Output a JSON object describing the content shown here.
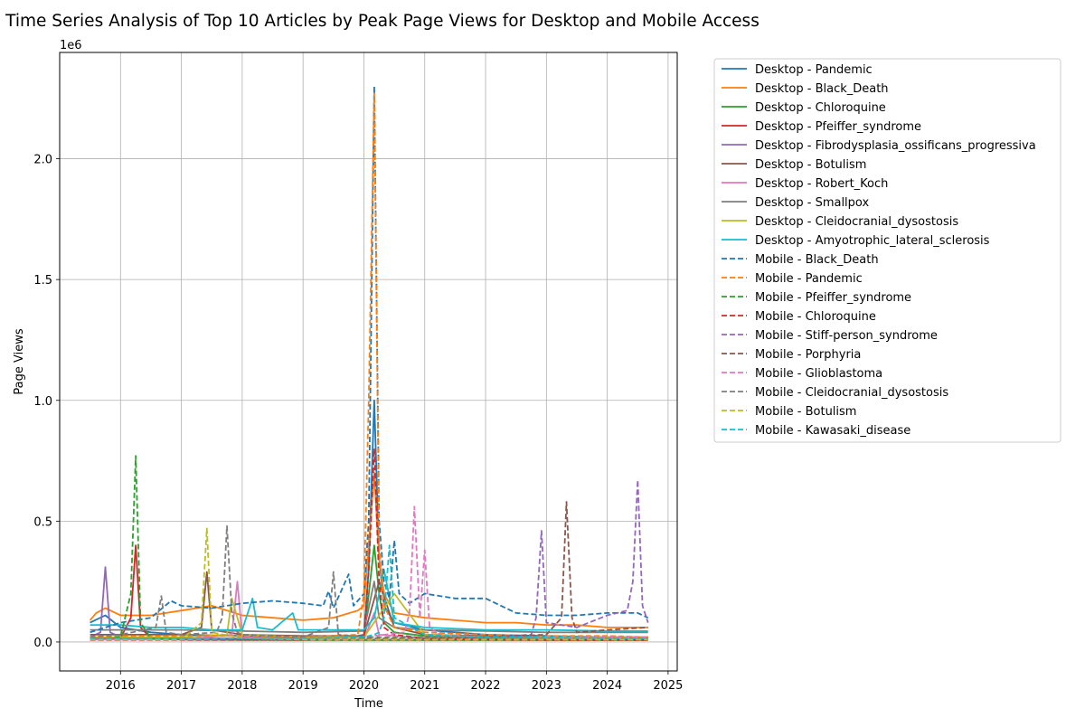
{
  "chart_data": {
    "type": "line",
    "title": "Time Series Analysis of Top 10 Articles by Peak Page Views for Desktop and Mobile Access",
    "xlabel": "Time",
    "ylabel": "Page Views",
    "y_offset_label": "1e6",
    "xlim": [
      2015.0,
      2025.15
    ],
    "ylim": [
      -120000,
      2440000
    ],
    "x_ticks": [
      2016,
      2017,
      2018,
      2019,
      2020,
      2021,
      2022,
      2023,
      2024,
      2025
    ],
    "y_ticks": [
      0,
      500000,
      1000000,
      1500000,
      2000000
    ],
    "y_tick_labels": [
      "0.0",
      "0.5",
      "1.0",
      "1.5",
      "2.0"
    ],
    "grid": true,
    "legend_position": "outside-right",
    "series": [
      {
        "name": "Desktop - Pandemic",
        "style": "solid",
        "color": "#1f77b4",
        "x": [
          2015.5,
          2015.75,
          2016.0,
          2016.5,
          2017.0,
          2018.0,
          2019.0,
          2019.8,
          2020.0,
          2020.08,
          2020.17,
          2020.25,
          2020.33,
          2020.5,
          2021.0,
          2022.0,
          2023.0,
          2024.0,
          2024.67
        ],
        "y": [
          80000,
          110000,
          60000,
          40000,
          30000,
          25000,
          20000,
          20000,
          30000,
          300000,
          1000000,
          350000,
          150000,
          80000,
          50000,
          30000,
          25000,
          20000,
          20000
        ]
      },
      {
        "name": "Desktop - Black_Death",
        "style": "solid",
        "color": "#ff7f0e",
        "x": [
          2015.5,
          2015.6,
          2015.75,
          2016.0,
          2016.5,
          2017.0,
          2017.5,
          2018.0,
          2018.5,
          2019.0,
          2019.5,
          2019.9,
          2020.0,
          2020.17,
          2020.25,
          2020.33,
          2020.5,
          2021.0,
          2021.5,
          2022.0,
          2022.5,
          2023.0,
          2023.5,
          2024.0,
          2024.67
        ],
        "y": [
          90000,
          120000,
          140000,
          110000,
          110000,
          130000,
          150000,
          110000,
          100000,
          90000,
          100000,
          130000,
          150000,
          700000,
          350000,
          200000,
          120000,
          100000,
          90000,
          80000,
          80000,
          70000,
          70000,
          60000,
          60000
        ]
      },
      {
        "name": "Desktop - Chloroquine",
        "style": "solid",
        "color": "#2ca02c",
        "x": [
          2015.5,
          2016.0,
          2017.0,
          2018.0,
          2019.0,
          2020.0,
          2020.17,
          2020.25,
          2020.33,
          2020.5,
          2021.0,
          2022.0,
          2023.0,
          2024.0,
          2024.67
        ],
        "y": [
          15000,
          15000,
          15000,
          15000,
          15000,
          20000,
          400000,
          200000,
          80000,
          40000,
          25000,
          15000,
          12000,
          10000,
          10000
        ]
      },
      {
        "name": "Desktop - Pfeiffer_syndrome",
        "style": "solid",
        "color": "#d62728",
        "x": [
          2015.5,
          2016.0,
          2016.17,
          2016.25,
          2016.33,
          2016.5,
          2017.0,
          2018.0,
          2019.0,
          2020.0,
          2021.0,
          2022.0,
          2023.0,
          2024.0,
          2024.67
        ],
        "y": [
          10000,
          15000,
          100000,
          400000,
          60000,
          15000,
          10000,
          10000,
          8000,
          8000,
          8000,
          8000,
          8000,
          8000,
          8000
        ]
      },
      {
        "name": "Desktop - Fibrodysplasia_ossificans_progressiva",
        "style": "solid",
        "color": "#9467bd",
        "x": [
          2015.5,
          2015.67,
          2015.75,
          2015.83,
          2016.0,
          2017.0,
          2018.0,
          2019.0,
          2020.0,
          2021.0,
          2022.0,
          2023.0,
          2024.0,
          2024.67
        ],
        "y": [
          20000,
          40000,
          310000,
          40000,
          20000,
          15000,
          12000,
          10000,
          10000,
          10000,
          10000,
          10000,
          10000,
          10000
        ]
      },
      {
        "name": "Desktop - Botulism",
        "style": "solid",
        "color": "#8c564b",
        "x": [
          2015.5,
          2016.0,
          2017.0,
          2017.33,
          2017.42,
          2017.5,
          2018.0,
          2019.0,
          2020.0,
          2020.25,
          2020.5,
          2021.0,
          2022.0,
          2023.0,
          2024.0,
          2024.67
        ],
        "y": [
          30000,
          30000,
          30000,
          60000,
          290000,
          50000,
          30000,
          25000,
          25000,
          250000,
          60000,
          30000,
          25000,
          20000,
          20000,
          20000
        ]
      },
      {
        "name": "Desktop - Robert_Koch",
        "style": "solid",
        "color": "#e377c2",
        "x": [
          2015.5,
          2016.0,
          2017.0,
          2017.83,
          2017.92,
          2018.0,
          2019.0,
          2020.0,
          2020.17,
          2020.25,
          2021.0,
          2022.0,
          2023.0,
          2024.0,
          2024.67
        ],
        "y": [
          10000,
          10000,
          10000,
          30000,
          250000,
          20000,
          10000,
          10000,
          120000,
          30000,
          15000,
          10000,
          10000,
          10000,
          10000
        ]
      },
      {
        "name": "Desktop - Smallpox",
        "style": "solid",
        "color": "#7f7f7f",
        "x": [
          2015.5,
          2016.0,
          2017.0,
          2018.0,
          2019.0,
          2020.0,
          2020.17,
          2020.25,
          2020.5,
          2021.0,
          2022.0,
          2023.0,
          2024.0,
          2024.67
        ],
        "y": [
          50000,
          50000,
          50000,
          45000,
          40000,
          45000,
          250000,
          100000,
          60000,
          50000,
          45000,
          40000,
          40000,
          40000
        ]
      },
      {
        "name": "Desktop - Cleidocranial_dysostosis",
        "style": "solid",
        "color": "#bcbd22",
        "x": [
          2015.5,
          2016.0,
          2017.0,
          2017.75,
          2017.83,
          2018.0,
          2019.0,
          2020.0,
          2020.5,
          2021.0,
          2022.0,
          2023.0,
          2024.0,
          2024.67
        ],
        "y": [
          20000,
          20000,
          20000,
          30000,
          180000,
          30000,
          20000,
          20000,
          200000,
          30000,
          20000,
          20000,
          20000,
          20000
        ]
      },
      {
        "name": "Desktop - Amyotrophic_lateral_sclerosis",
        "style": "solid",
        "color": "#17becf",
        "x": [
          2015.5,
          2016.0,
          2016.5,
          2017.0,
          2017.5,
          2018.0,
          2018.17,
          2018.25,
          2018.5,
          2018.83,
          2018.92,
          2019.0,
          2019.5,
          2020.0,
          2020.17,
          2020.33,
          2020.5,
          2021.0,
          2022.0,
          2023.0,
          2024.0,
          2024.67
        ],
        "y": [
          70000,
          70000,
          60000,
          60000,
          50000,
          50000,
          180000,
          60000,
          50000,
          120000,
          50000,
          50000,
          50000,
          50000,
          100000,
          300000,
          80000,
          60000,
          50000,
          50000,
          45000,
          45000
        ]
      },
      {
        "name": "Mobile - Black_Death",
        "style": "dashed",
        "color": "#1f77b4",
        "x": [
          2015.5,
          2016.0,
          2016.5,
          2016.83,
          2017.0,
          2017.5,
          2018.0,
          2018.5,
          2019.0,
          2019.33,
          2019.42,
          2019.5,
          2019.75,
          2019.83,
          2020.0,
          2020.08,
          2020.17,
          2020.25,
          2020.33,
          2020.42,
          2020.5,
          2020.58,
          2020.75,
          2021.0,
          2021.5,
          2022.0,
          2022.5,
          2023.0,
          2023.5,
          2024.0,
          2024.5,
          2024.67
        ],
        "y": [
          40000,
          80000,
          100000,
          170000,
          150000,
          140000,
          160000,
          170000,
          160000,
          150000,
          210000,
          140000,
          280000,
          150000,
          200000,
          500000,
          2300000,
          500000,
          250000,
          180000,
          420000,
          200000,
          160000,
          200000,
          180000,
          180000,
          120000,
          110000,
          110000,
          120000,
          120000,
          100000
        ]
      },
      {
        "name": "Mobile - Pandemic",
        "style": "dashed",
        "color": "#ff7f0e",
        "x": [
          2015.5,
          2016.0,
          2017.0,
          2018.0,
          2019.0,
          2019.9,
          2020.0,
          2020.08,
          2020.17,
          2020.25,
          2020.33,
          2020.5,
          2021.0,
          2022.0,
          2023.0,
          2024.0,
          2024.67
        ],
        "y": [
          20000,
          25000,
          25000,
          25000,
          20000,
          30000,
          200000,
          1000000,
          2270000,
          400000,
          150000,
          60000,
          40000,
          30000,
          25000,
          25000,
          20000
        ]
      },
      {
        "name": "Mobile - Pfeiffer_syndrome",
        "style": "dashed",
        "color": "#2ca02c",
        "x": [
          2015.5,
          2016.0,
          2016.17,
          2016.25,
          2016.33,
          2016.5,
          2017.0,
          2018.0,
          2019.0,
          2020.0,
          2021.0,
          2022.0,
          2023.0,
          2024.0,
          2024.67
        ],
        "y": [
          10000,
          20000,
          200000,
          770000,
          80000,
          15000,
          10000,
          8000,
          8000,
          8000,
          8000,
          8000,
          8000,
          8000,
          8000
        ]
      },
      {
        "name": "Mobile - Chloroquine",
        "style": "dashed",
        "color": "#d62728",
        "x": [
          2015.5,
          2016.0,
          2017.0,
          2018.0,
          2019.0,
          2020.0,
          2020.08,
          2020.17,
          2020.25,
          2020.33,
          2020.5,
          2021.0,
          2022.0,
          2023.0,
          2024.0,
          2024.67
        ],
        "y": [
          8000,
          8000,
          8000,
          8000,
          8000,
          15000,
          300000,
          800000,
          250000,
          60000,
          30000,
          15000,
          10000,
          8000,
          8000,
          8000
        ]
      },
      {
        "name": "Mobile - Stiff-person_syndrome",
        "style": "dashed",
        "color": "#9467bd",
        "x": [
          2015.5,
          2016.0,
          2017.0,
          2018.0,
          2019.0,
          2020.0,
          2021.0,
          2022.0,
          2022.75,
          2022.83,
          2022.92,
          2023.0,
          2023.5,
          2024.0,
          2024.33,
          2024.42,
          2024.5,
          2024.58,
          2024.67
        ],
        "y": [
          10000,
          10000,
          10000,
          10000,
          10000,
          10000,
          15000,
          20000,
          30000,
          100000,
          460000,
          80000,
          60000,
          110000,
          130000,
          250000,
          670000,
          150000,
          80000
        ]
      },
      {
        "name": "Mobile - Porphyria",
        "style": "dashed",
        "color": "#8c564b",
        "x": [
          2015.5,
          2016.0,
          2017.0,
          2018.0,
          2019.0,
          2020.0,
          2021.0,
          2022.0,
          2023.0,
          2023.25,
          2023.33,
          2023.42,
          2023.5,
          2024.0,
          2024.67
        ],
        "y": [
          10000,
          10000,
          10000,
          10000,
          10000,
          15000,
          15000,
          20000,
          30000,
          100000,
          580000,
          100000,
          40000,
          50000,
          60000
        ]
      },
      {
        "name": "Mobile - Glioblastoma",
        "style": "dashed",
        "color": "#e377c2",
        "x": [
          2015.5,
          2016.0,
          2017.0,
          2018.0,
          2019.0,
          2020.0,
          2020.67,
          2020.75,
          2020.83,
          2020.92,
          2021.0,
          2021.08,
          2021.25,
          2022.0,
          2023.0,
          2024.0,
          2024.67
        ],
        "y": [
          10000,
          10000,
          10000,
          15000,
          15000,
          20000,
          40000,
          120000,
          560000,
          100000,
          380000,
          60000,
          30000,
          20000,
          20000,
          20000,
          20000
        ]
      },
      {
        "name": "Mobile - Cleidocranial_dysostosis",
        "style": "dashed",
        "color": "#7f7f7f",
        "x": [
          2015.5,
          2016.0,
          2016.58,
          2016.67,
          2016.75,
          2017.0,
          2017.58,
          2017.67,
          2017.75,
          2017.83,
          2017.92,
          2018.0,
          2019.0,
          2019.42,
          2019.5,
          2019.58,
          2020.0,
          2021.0,
          2022.0,
          2023.0,
          2024.0,
          2024.67
        ],
        "y": [
          20000,
          30000,
          60000,
          190000,
          40000,
          30000,
          40000,
          100000,
          480000,
          120000,
          40000,
          30000,
          20000,
          60000,
          290000,
          30000,
          20000,
          20000,
          20000,
          15000,
          15000,
          15000
        ]
      },
      {
        "name": "Mobile - Botulism",
        "style": "dashed",
        "color": "#bcbd22",
        "x": [
          2015.5,
          2016.0,
          2017.0,
          2017.33,
          2017.42,
          2017.5,
          2018.0,
          2019.0,
          2020.0,
          2021.0,
          2022.0,
          2023.0,
          2024.0,
          2024.67
        ],
        "y": [
          10000,
          10000,
          10000,
          80000,
          470000,
          40000,
          15000,
          10000,
          10000,
          10000,
          10000,
          10000,
          10000,
          10000
        ]
      },
      {
        "name": "Mobile - Kawasaki_disease",
        "style": "dashed",
        "color": "#17becf",
        "x": [
          2015.5,
          2016.0,
          2017.0,
          2018.0,
          2019.0,
          2020.0,
          2020.17,
          2020.25,
          2020.33,
          2020.42,
          2020.5,
          2021.0,
          2022.0,
          2023.0,
          2024.0,
          2024.67
        ],
        "y": [
          15000,
          15000,
          15000,
          15000,
          15000,
          20000,
          30000,
          40000,
          100000,
          400000,
          100000,
          30000,
          20000,
          20000,
          15000,
          15000
        ]
      }
    ]
  }
}
